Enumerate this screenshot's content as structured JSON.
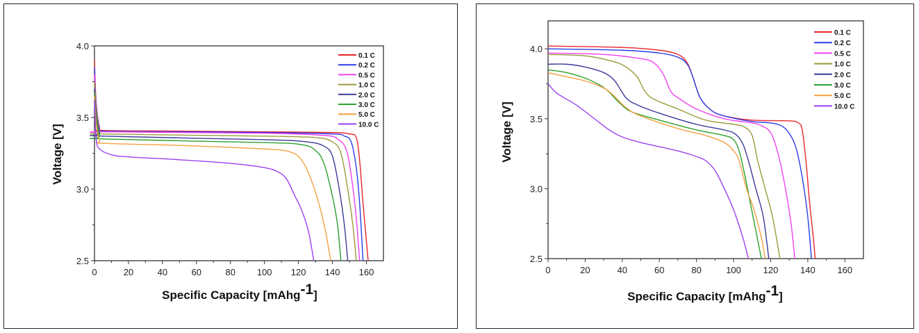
{
  "chart_data": [
    {
      "type": "line",
      "xlabel": {
        "text": "Specific Capacity [mAhg",
        "sup": "-1",
        "close": "]"
      },
      "ylabel": "Voltage [V]",
      "xlim": [
        0,
        170
      ],
      "ylim": [
        2.5,
        4.0
      ],
      "xticks": [
        "0",
        "20",
        "40",
        "60",
        "80",
        "100",
        "120",
        "140",
        "160"
      ],
      "yticks": [
        "2.5",
        "3.0",
        "3.5",
        "4.0"
      ],
      "grid": false,
      "legend_position": "top-right",
      "series": [
        {
          "name": "0.1 C",
          "color": "#e8252b",
          "points": [
            [
              0,
              3.9
            ],
            [
              1,
              3.6
            ],
            [
              3,
              3.43
            ],
            [
              5,
              3.41
            ],
            [
              50,
              3.405
            ],
            [
              100,
              3.4
            ],
            [
              140,
              3.395
            ],
            [
              150,
              3.385
            ],
            [
              154,
              3.36
            ],
            [
              156,
              3.2
            ],
            [
              158,
              2.9
            ],
            [
              161,
              2.5
            ]
          ]
        },
        {
          "name": "0.2 C",
          "color": "#2b3ce8",
          "points": [
            [
              0,
              3.85
            ],
            [
              1,
              3.58
            ],
            [
              3,
              3.42
            ],
            [
              5,
              3.405
            ],
            [
              50,
              3.4
            ],
            [
              100,
              3.395
            ],
            [
              140,
              3.385
            ],
            [
              147,
              3.37
            ],
            [
              151,
              3.33
            ],
            [
              154,
              3.15
            ],
            [
              156,
              2.9
            ],
            [
              158,
              2.5
            ]
          ]
        },
        {
          "name": "0.5 C",
          "color": "#f040f0",
          "points": [
            [
              0,
              3.8
            ],
            [
              1,
              3.56
            ],
            [
              3,
              3.41
            ],
            [
              5,
              3.4
            ],
            [
              100,
              3.39
            ],
            [
              135,
              3.375
            ],
            [
              143,
              3.35
            ],
            [
              148,
              3.28
            ],
            [
              151,
              3.1
            ],
            [
              154,
              2.8
            ],
            [
              156,
              2.5
            ]
          ]
        },
        {
          "name": "1.0 C",
          "color": "#9a9a3a",
          "points": [
            [
              0,
              3.75
            ],
            [
              1,
              3.55
            ],
            [
              3,
              3.4
            ],
            [
              5,
              3.385
            ],
            [
              100,
              3.37
            ],
            [
              130,
              3.36
            ],
            [
              140,
              3.33
            ],
            [
              145,
              3.25
            ],
            [
              149,
              3.0
            ],
            [
              152,
              2.75
            ],
            [
              154,
              2.5
            ]
          ]
        },
        {
          "name": "2.0 C",
          "color": "#3a3a9a",
          "points": [
            [
              0,
              3.7
            ],
            [
              1,
              3.52
            ],
            [
              3,
              3.39
            ],
            [
              5,
              3.37
            ],
            [
              100,
              3.345
            ],
            [
              125,
              3.33
            ],
            [
              135,
              3.3
            ],
            [
              140,
              3.23
            ],
            [
              144,
              3.0
            ],
            [
              147,
              2.75
            ],
            [
              149,
              2.5
            ]
          ]
        },
        {
          "name": "3.0 C",
          "color": "#2ca02c",
          "points": [
            [
              0,
              3.68
            ],
            [
              1,
              3.5
            ],
            [
              3,
              3.37
            ],
            [
              5,
              3.35
            ],
            [
              100,
              3.325
            ],
            [
              122,
              3.31
            ],
            [
              130,
              3.27
            ],
            [
              135,
              3.18
            ],
            [
              140,
              2.95
            ],
            [
              143,
              2.75
            ],
            [
              145,
              2.5
            ]
          ]
        },
        {
          "name": "5.0 C",
          "color": "#f5a040",
          "points": [
            [
              0,
              3.65
            ],
            [
              1,
              3.46
            ],
            [
              3,
              3.34
            ],
            [
              5,
              3.32
            ],
            [
              50,
              3.305
            ],
            [
              100,
              3.28
            ],
            [
              115,
              3.26
            ],
            [
              122,
              3.2
            ],
            [
              127,
              3.08
            ],
            [
              132,
              2.9
            ],
            [
              136,
              2.7
            ],
            [
              139,
              2.5
            ]
          ]
        },
        {
          "name": "10.0 C",
          "color": "#9b40f0",
          "points": [
            [
              0,
              3.62
            ],
            [
              1,
              3.35
            ],
            [
              3,
              3.28
            ],
            [
              10,
              3.24
            ],
            [
              20,
              3.225
            ],
            [
              50,
              3.205
            ],
            [
              80,
              3.18
            ],
            [
              100,
              3.15
            ],
            [
              108,
              3.12
            ],
            [
              113,
              3.07
            ],
            [
              118,
              2.95
            ],
            [
              122,
              2.85
            ],
            [
              126,
              2.7
            ],
            [
              129,
              2.5
            ]
          ]
        }
      ]
    },
    {
      "type": "line",
      "xlabel": {
        "text": "Specific Capacity [mAhg",
        "sup": "-1",
        "close": "]"
      },
      "ylabel": "Voltage [V]",
      "xlim": [
        0,
        170
      ],
      "ylim": [
        2.5,
        4.2
      ],
      "xticks": [
        "0",
        "20",
        "40",
        "60",
        "80",
        "100",
        "120",
        "140",
        "160"
      ],
      "yticks": [
        "2.5",
        "3.0",
        "3.5",
        "4.0"
      ],
      "grid": false,
      "legend_position": "top-right",
      "series": [
        {
          "name": "0.1 C",
          "color": "#e8252b",
          "points": [
            [
              0,
              4.02
            ],
            [
              40,
              4.01
            ],
            [
              60,
              3.99
            ],
            [
              70,
              3.96
            ],
            [
              75,
              3.9
            ],
            [
              78,
              3.8
            ],
            [
              82,
              3.65
            ],
            [
              88,
              3.56
            ],
            [
              95,
              3.52
            ],
            [
              110,
              3.49
            ],
            [
              130,
              3.485
            ],
            [
              135,
              3.47
            ],
            [
              137,
              3.42
            ],
            [
              139,
              3.2
            ],
            [
              141,
              2.9
            ],
            [
              143,
              2.65
            ],
            [
              144,
              2.5
            ]
          ]
        },
        {
          "name": "0.2 C",
          "color": "#2b3ce8",
          "points": [
            [
              0,
              4.0
            ],
            [
              40,
              3.99
            ],
            [
              60,
              3.97
            ],
            [
              70,
              3.94
            ],
            [
              75,
              3.89
            ],
            [
              78,
              3.8
            ],
            [
              82,
              3.65
            ],
            [
              88,
              3.56
            ],
            [
              95,
              3.52
            ],
            [
              110,
              3.48
            ],
            [
              120,
              3.47
            ],
            [
              127,
              3.44
            ],
            [
              132,
              3.35
            ],
            [
              135,
              3.22
            ],
            [
              138,
              3.0
            ],
            [
              140,
              2.8
            ],
            [
              142,
              2.5
            ]
          ]
        },
        {
          "name": "0.5 C",
          "color": "#f040f0",
          "points": [
            [
              0,
              3.97
            ],
            [
              30,
              3.96
            ],
            [
              50,
              3.93
            ],
            [
              57,
              3.9
            ],
            [
              62,
              3.82
            ],
            [
              66,
              3.7
            ],
            [
              70,
              3.65
            ],
            [
              80,
              3.57
            ],
            [
              95,
              3.5
            ],
            [
              110,
              3.47
            ],
            [
              115,
              3.45
            ],
            [
              120,
              3.4
            ],
            [
              124,
              3.25
            ],
            [
              128,
              3.0
            ],
            [
              131,
              2.75
            ],
            [
              133,
              2.5
            ]
          ]
        },
        {
          "name": "1.0 C",
          "color": "#9a9a3a",
          "points": [
            [
              0,
              3.96
            ],
            [
              20,
              3.95
            ],
            [
              35,
              3.91
            ],
            [
              42,
              3.87
            ],
            [
              48,
              3.8
            ],
            [
              52,
              3.7
            ],
            [
              57,
              3.64
            ],
            [
              70,
              3.57
            ],
            [
              85,
              3.49
            ],
            [
              100,
              3.46
            ],
            [
              106,
              3.44
            ],
            [
              110,
              3.38
            ],
            [
              113,
              3.2
            ],
            [
              117,
              3.0
            ],
            [
              121,
              2.8
            ],
            [
              125,
              2.5
            ]
          ]
        },
        {
          "name": "2.0 C",
          "color": "#3a3a9a",
          "points": [
            [
              0,
              3.89
            ],
            [
              10,
              3.89
            ],
            [
              20,
              3.87
            ],
            [
              30,
              3.83
            ],
            [
              36,
              3.77
            ],
            [
              42,
              3.65
            ],
            [
              48,
              3.6
            ],
            [
              60,
              3.54
            ],
            [
              80,
              3.46
            ],
            [
              95,
              3.42
            ],
            [
              101,
              3.39
            ],
            [
              105,
              3.32
            ],
            [
              108,
              3.2
            ],
            [
              112,
              3.0
            ],
            [
              116,
              2.8
            ],
            [
              119,
              2.5
            ]
          ]
        },
        {
          "name": "3.0 C",
          "color": "#2ca02c",
          "points": [
            [
              0,
              3.85
            ],
            [
              10,
              3.83
            ],
            [
              20,
              3.79
            ],
            [
              28,
              3.74
            ],
            [
              33,
              3.69
            ],
            [
              38,
              3.62
            ],
            [
              45,
              3.55
            ],
            [
              60,
              3.49
            ],
            [
              80,
              3.42
            ],
            [
              95,
              3.38
            ],
            [
              100,
              3.35
            ],
            [
              103,
              3.27
            ],
            [
              106,
              3.1
            ],
            [
              109,
              2.9
            ],
            [
              112,
              2.7
            ],
            [
              115,
              2.5
            ]
          ]
        },
        {
          "name": "5.0 C",
          "color": "#f5a040",
          "points": [
            [
              0,
              3.83
            ],
            [
              10,
              3.8
            ],
            [
              20,
              3.77
            ],
            [
              30,
              3.72
            ],
            [
              35,
              3.67
            ],
            [
              42,
              3.58
            ],
            [
              50,
              3.52
            ],
            [
              70,
              3.43
            ],
            [
              85,
              3.38
            ],
            [
              95,
              3.33
            ],
            [
              100,
              3.27
            ],
            [
              103,
              3.2
            ],
            [
              107,
              3.0
            ],
            [
              111,
              2.85
            ],
            [
              115,
              2.65
            ],
            [
              117,
              2.5
            ]
          ]
        },
        {
          "name": "10.0 C",
          "color": "#9b40f0",
          "points": [
            [
              0,
              3.75
            ],
            [
              5,
              3.68
            ],
            [
              15,
              3.6
            ],
            [
              25,
              3.5
            ],
            [
              33,
              3.42
            ],
            [
              40,
              3.37
            ],
            [
              50,
              3.33
            ],
            [
              70,
              3.27
            ],
            [
              80,
              3.23
            ],
            [
              85,
              3.2
            ],
            [
              90,
              3.13
            ],
            [
              95,
              3.0
            ],
            [
              100,
              2.85
            ],
            [
              105,
              2.65
            ],
            [
              108,
              2.5
            ]
          ]
        }
      ]
    }
  ]
}
